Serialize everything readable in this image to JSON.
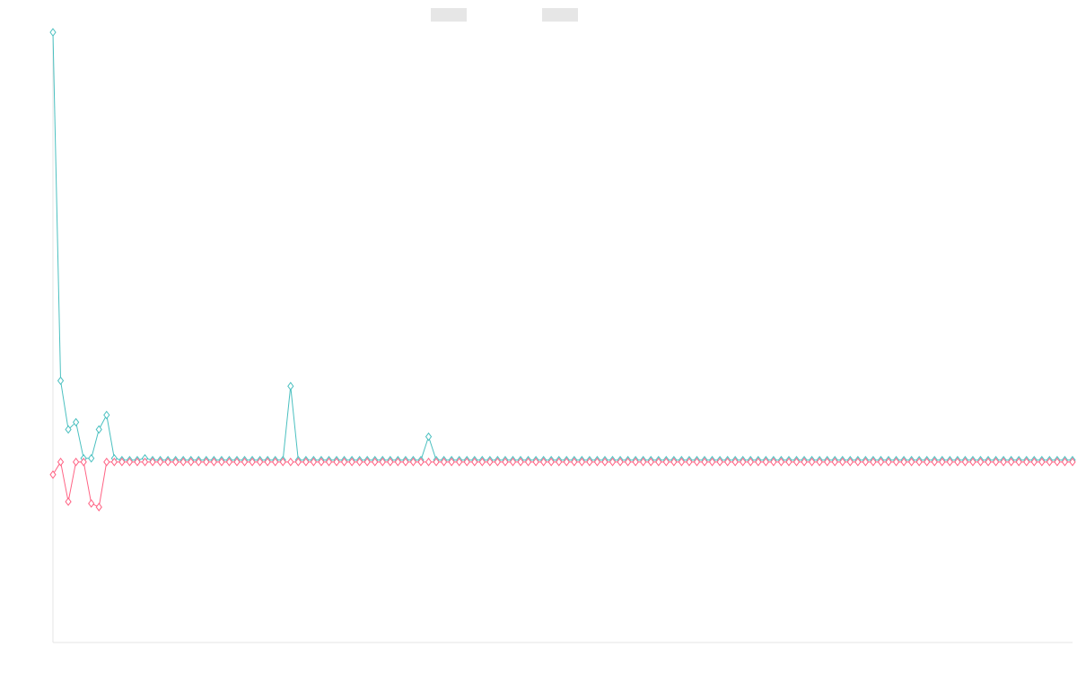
{
  "chart_data": {
    "type": "line",
    "title": "",
    "xlabel": "",
    "ylabel": "",
    "x_range": [
      0,
      133
    ],
    "ylim": [
      -100,
      238
    ],
    "grid": false,
    "legend_placement": "top-center",
    "series": [
      {
        "name": "",
        "color": "#4bc0c0",
        "sparse_values": [
          [
            0,
            238
          ],
          [
            1,
            45
          ],
          [
            2,
            18
          ],
          [
            3,
            22
          ],
          [
            4,
            2
          ],
          [
            5,
            2
          ],
          [
            6,
            18
          ],
          [
            7,
            26
          ],
          [
            8,
            2
          ],
          [
            9,
            1
          ],
          [
            10,
            1
          ],
          [
            11,
            1
          ],
          [
            12,
            2
          ],
          [
            13,
            1
          ],
          [
            14,
            1
          ],
          [
            15,
            1
          ],
          [
            16,
            1
          ],
          [
            17,
            1
          ],
          [
            18,
            1
          ],
          [
            19,
            1
          ],
          [
            20,
            1
          ],
          [
            21,
            1
          ],
          [
            22,
            1
          ],
          [
            23,
            1
          ],
          [
            24,
            1
          ],
          [
            25,
            1
          ],
          [
            26,
            1
          ],
          [
            27,
            1
          ],
          [
            28,
            1
          ],
          [
            29,
            1
          ],
          [
            30,
            1
          ],
          [
            31,
            42
          ],
          [
            32,
            1
          ],
          [
            33,
            1
          ],
          [
            34,
            1
          ],
          [
            35,
            1
          ],
          [
            36,
            1
          ],
          [
            37,
            1
          ],
          [
            38,
            1
          ],
          [
            39,
            1
          ],
          [
            40,
            1
          ],
          [
            41,
            1
          ],
          [
            42,
            1
          ],
          [
            43,
            1
          ],
          [
            44,
            1
          ],
          [
            45,
            1
          ],
          [
            46,
            1
          ],
          [
            47,
            1
          ],
          [
            48,
            1
          ],
          [
            49,
            14
          ],
          [
            50,
            1
          ],
          [
            51,
            1
          ],
          [
            52,
            1
          ],
          [
            53,
            1
          ],
          [
            54,
            1
          ],
          [
            55,
            1
          ],
          [
            56,
            1
          ],
          [
            57,
            1
          ],
          [
            58,
            1
          ],
          [
            59,
            1
          ],
          [
            60,
            1
          ],
          [
            61,
            1
          ],
          [
            62,
            1
          ],
          [
            63,
            1
          ],
          [
            64,
            1
          ],
          [
            65,
            1
          ],
          [
            66,
            1
          ],
          [
            67,
            1
          ],
          [
            68,
            1
          ],
          [
            69,
            1
          ],
          [
            70,
            1
          ],
          [
            71,
            1
          ],
          [
            72,
            1
          ],
          [
            73,
            1
          ],
          [
            74,
            1
          ],
          [
            75,
            1
          ],
          [
            76,
            1
          ],
          [
            77,
            1
          ],
          [
            78,
            1
          ],
          [
            79,
            1
          ],
          [
            80,
            1
          ],
          [
            81,
            1
          ],
          [
            82,
            1
          ],
          [
            83,
            1
          ],
          [
            84,
            1
          ],
          [
            85,
            1
          ],
          [
            86,
            1
          ],
          [
            87,
            1
          ],
          [
            88,
            1
          ],
          [
            89,
            1
          ],
          [
            90,
            1
          ],
          [
            91,
            1
          ],
          [
            92,
            1
          ],
          [
            93,
            1
          ],
          [
            94,
            1
          ],
          [
            95,
            1
          ],
          [
            96,
            1
          ],
          [
            97,
            1
          ],
          [
            98,
            1
          ],
          [
            99,
            1
          ],
          [
            100,
            1
          ],
          [
            101,
            1
          ],
          [
            102,
            1
          ],
          [
            103,
            1
          ],
          [
            104,
            1
          ],
          [
            105,
            1
          ],
          [
            106,
            1
          ],
          [
            107,
            1
          ],
          [
            108,
            1
          ],
          [
            109,
            1
          ],
          [
            110,
            1
          ],
          [
            111,
            1
          ],
          [
            112,
            1
          ],
          [
            113,
            1
          ],
          [
            114,
            1
          ],
          [
            115,
            1
          ],
          [
            116,
            1
          ],
          [
            117,
            1
          ],
          [
            118,
            1
          ],
          [
            119,
            1
          ],
          [
            120,
            1
          ],
          [
            121,
            1
          ],
          [
            122,
            1
          ],
          [
            123,
            1
          ],
          [
            124,
            1
          ],
          [
            125,
            1
          ],
          [
            126,
            1
          ],
          [
            127,
            1
          ],
          [
            128,
            1
          ],
          [
            129,
            1
          ],
          [
            130,
            1
          ],
          [
            131,
            1
          ],
          [
            132,
            1
          ],
          [
            133,
            1
          ]
        ]
      },
      {
        "name": "",
        "color": "#ff6384",
        "sparse_values": [
          [
            0,
            -7
          ],
          [
            1,
            0
          ],
          [
            2,
            -22
          ],
          [
            3,
            0
          ],
          [
            4,
            0
          ],
          [
            5,
            -23
          ],
          [
            6,
            -25
          ],
          [
            7,
            0
          ]
        ]
      }
    ]
  }
}
